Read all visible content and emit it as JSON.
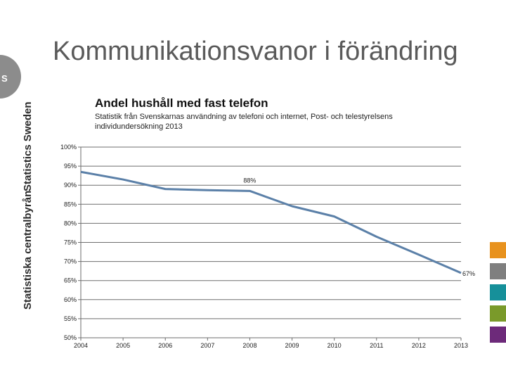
{
  "slide": {
    "title": "Kommunikationsvanor i förändring"
  },
  "branding": {
    "logo_text": "SCB",
    "side_text_en": "Statistics Sweden",
    "side_text_sv": "Statistiska centralbyrån",
    "swatch_colors": [
      "#e8921e",
      "#7f7f7f",
      "#16909a",
      "#7a9a2a",
      "#6d2a7a"
    ]
  },
  "chart_data": {
    "type": "line",
    "title": "Andel hushåll med fast telefon",
    "subtitle": "Statistik från Svenskarnas användning av telefoni och internet, Post- och telestyrelsens individundersökning 2013",
    "x": [
      "2004",
      "2005",
      "2006",
      "2007",
      "2008",
      "2009",
      "2010",
      "2011",
      "2012",
      "2013"
    ],
    "series": [
      {
        "values": [
          93.5,
          91.5,
          89,
          88.7,
          88.5,
          84.5,
          81.8,
          76.5,
          71.8,
          67
        ]
      }
    ],
    "y_ticks": [
      "100%",
      "95%",
      "90%",
      "85%",
      "80%",
      "75%",
      "70%",
      "65%",
      "60%",
      "55%",
      "50%"
    ],
    "ylim": [
      50,
      100
    ],
    "data_labels": [
      {
        "index": 4,
        "text": "88%"
      },
      {
        "index": 9,
        "text": "67%"
      }
    ],
    "grid": true,
    "line_color": "#5b80a8"
  }
}
